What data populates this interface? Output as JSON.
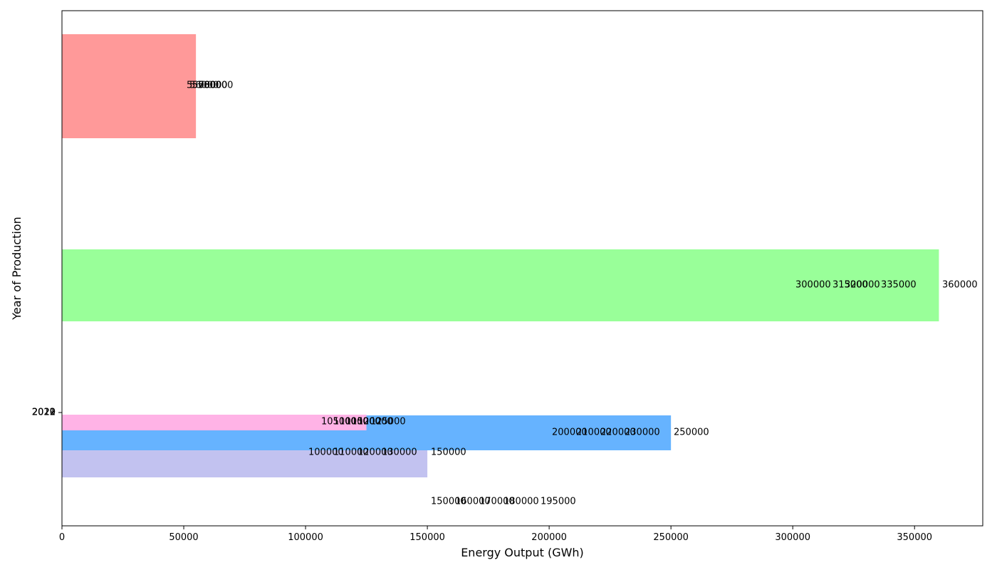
{
  "chart_data": {
    "type": "bar",
    "orientation": "horizontal",
    "title": "",
    "xlabel": "Energy Output (GWh)",
    "ylabel": "Year of Production",
    "xlim": [
      0,
      378000
    ],
    "xticks": [
      0,
      50000,
      100000,
      150000,
      200000,
      250000,
      300000,
      350000
    ],
    "ytick_labels": [
      "2019",
      "2020",
      "2021",
      "2022"
    ],
    "grid": false,
    "legend": "none",
    "series": [
      {
        "color": "#ff9999",
        "value": 55000,
        "labels": [
          "55000",
          "56000",
          "57000",
          "58000",
          "60000"
        ]
      },
      {
        "color": "#99ff99",
        "value": 360000,
        "labels": [
          "300000",
          "315000",
          "320000",
          "335000",
          "360000"
        ]
      },
      {
        "color": "#ffb3e6",
        "value": 125000,
        "labels": [
          "105000",
          "110000",
          "115000",
          "120000",
          "125000"
        ]
      },
      {
        "color": "#66b3ff",
        "value": 250000,
        "labels": [
          "200000",
          "210000",
          "220000",
          "230000",
          "250000"
        ]
      },
      {
        "color": "#c2c2f0",
        "value": 150000,
        "labels": [
          "100000",
          "110000",
          "120000",
          "130000",
          "150000"
        ]
      },
      {
        "color": "",
        "value": 0,
        "labels": [
          "150000",
          "160000",
          "170000",
          "180000",
          "195000"
        ]
      }
    ]
  }
}
